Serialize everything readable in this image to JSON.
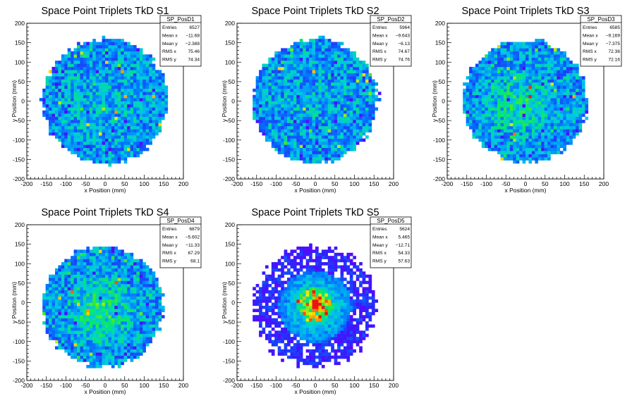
{
  "chart_data": [
    {
      "type": "heatmap",
      "title": "Space Point Triplets TkD S1",
      "xlabel": "x Position (mm)",
      "ylabel": "y Position (mm)",
      "xlim": [
        -200,
        200
      ],
      "ylim": [
        -200,
        200
      ],
      "x_ticks": [
        "-200",
        "-150",
        "-100",
        "-50",
        "0",
        "50",
        "100",
        "150",
        "200"
      ],
      "y_ticks": [
        "-200",
        "-150",
        "-100",
        "-50",
        "0",
        "50",
        "100",
        "150",
        "200"
      ],
      "footprint": {
        "shape": "disc",
        "center": [
          0,
          0
        ],
        "radius_mm": 160,
        "halo": false
      },
      "intensity": {
        "level": 0.55,
        "hot_center": false,
        "hot_offset_mm": [
          0,
          0
        ]
      },
      "stats": {
        "name": "SP_PosD1",
        "rows": [
          [
            "Entries",
            "6527"
          ],
          [
            "Mean x",
            "−11.68"
          ],
          [
            "Mean y",
            "−2.388"
          ],
          [
            "RMS x",
            "75.46"
          ],
          [
            "RMS y",
            "74.34"
          ]
        ]
      }
    },
    {
      "type": "heatmap",
      "title": "Space Point Triplets TkD S2",
      "xlabel": "x Position (mm)",
      "ylabel": "y Position (mm)",
      "xlim": [
        -200,
        200
      ],
      "ylim": [
        -200,
        200
      ],
      "x_ticks": [
        "-200",
        "-150",
        "-100",
        "-50",
        "0",
        "50",
        "100",
        "150",
        "200"
      ],
      "y_ticks": [
        "-200",
        "-150",
        "-100",
        "-50",
        "0",
        "50",
        "100",
        "150",
        "200"
      ],
      "footprint": {
        "shape": "disc",
        "center": [
          0,
          0
        ],
        "radius_mm": 160,
        "halo": false
      },
      "intensity": {
        "level": 0.5,
        "hot_center": false,
        "hot_offset_mm": [
          0,
          0
        ]
      },
      "stats": {
        "name": "SP_PosD2",
        "rows": [
          [
            "Entries",
            "5964"
          ],
          [
            "Mean x",
            "−9.643"
          ],
          [
            "Mean y",
            "−6.13"
          ],
          [
            "RMS x",
            "74.67"
          ],
          [
            "RMS y",
            "74.76"
          ]
        ]
      }
    },
    {
      "type": "heatmap",
      "title": "Space Point Triplets TkD S3",
      "xlabel": "x Position (mm)",
      "ylabel": "y Position (mm)",
      "xlim": [
        -200,
        200
      ],
      "ylim": [
        -200,
        200
      ],
      "x_ticks": [
        "-200",
        "-150",
        "-100",
        "-50",
        "0",
        "50",
        "100",
        "150",
        "200"
      ],
      "y_ticks": [
        "-200",
        "-150",
        "-100",
        "-50",
        "0",
        "50",
        "100",
        "150",
        "200"
      ],
      "footprint": {
        "shape": "disc",
        "center": [
          0,
          0
        ],
        "radius_mm": 158,
        "halo": false
      },
      "intensity": {
        "level": 0.58,
        "hot_center": true,
        "hot_offset_mm": [
          -20,
          -10
        ]
      },
      "stats": {
        "name": "SP_PosD3",
        "rows": [
          [
            "Entries",
            "6585"
          ],
          [
            "Mean x",
            "−9.169"
          ],
          [
            "Mean y",
            "−7.375"
          ],
          [
            "RMS x",
            "72.36"
          ],
          [
            "RMS y",
            "72.16"
          ]
        ]
      }
    },
    {
      "type": "heatmap",
      "title": "Space Point Triplets TkD S4",
      "xlabel": "x Position (mm)",
      "ylabel": "y Position (mm)",
      "xlim": [
        -200,
        200
      ],
      "ylim": [
        -200,
        200
      ],
      "x_ticks": [
        "-200",
        "-150",
        "-100",
        "-50",
        "0",
        "50",
        "100",
        "150",
        "200"
      ],
      "y_ticks": [
        "-200",
        "-150",
        "-100",
        "-50",
        "0",
        "50",
        "100",
        "150",
        "200"
      ],
      "footprint": {
        "shape": "disc",
        "center": [
          -5,
          -10
        ],
        "radius_mm": 155,
        "halo": false
      },
      "intensity": {
        "level": 0.7,
        "hot_center": true,
        "hot_offset_mm": [
          -10,
          -20
        ]
      },
      "stats": {
        "name": "SP_PosD4",
        "rows": [
          [
            "Entries",
            "6879"
          ],
          [
            "Mean x",
            "−5.602"
          ],
          [
            "Mean y",
            "−11.33"
          ],
          [
            "RMS x",
            "67.29"
          ],
          [
            "RMS y",
            "68.1"
          ]
        ]
      }
    },
    {
      "type": "heatmap",
      "title": "Space Point Triplets TkD S5",
      "xlabel": "x Position (mm)",
      "ylabel": "y Position (mm)",
      "xlim": [
        -200,
        200
      ],
      "ylim": [
        -200,
        200
      ],
      "x_ticks": [
        "-200",
        "-150",
        "-100",
        "-50",
        "0",
        "50",
        "100",
        "150",
        "200"
      ],
      "y_ticks": [
        "-200",
        "-150",
        "-100",
        "-50",
        "0",
        "50",
        "100",
        "150",
        "200"
      ],
      "footprint": {
        "shape": "disc",
        "center": [
          0,
          -10
        ],
        "radius_mm": 150,
        "halo": true
      },
      "intensity": {
        "level": 0.65,
        "hot_center": true,
        "hot_offset_mm": [
          0,
          -5
        ]
      },
      "stats": {
        "name": "SP_PosD5",
        "rows": [
          [
            "Entries",
            "5624"
          ],
          [
            "Mean x",
            "5.465"
          ],
          [
            "Mean y",
            "−12.71"
          ],
          [
            "RMS x",
            "54.33"
          ],
          [
            "RMS y",
            "57.63"
          ]
        ]
      }
    }
  ]
}
